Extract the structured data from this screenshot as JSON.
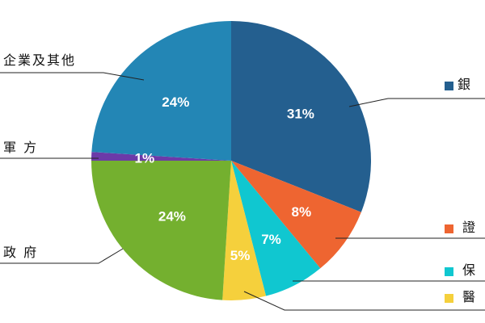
{
  "chart_data": {
    "type": "pie",
    "slices": [
      {
        "label": "銀",
        "value": 31,
        "display": "31%",
        "color": "#245f8f"
      },
      {
        "label": "證",
        "value": 8,
        "display": "8%",
        "color": "#ee6531"
      },
      {
        "label": "保",
        "value": 7,
        "display": "7%",
        "color": "#10c7d0"
      },
      {
        "label": "醫",
        "value": 5,
        "display": "5%",
        "color": "#f5d03c"
      },
      {
        "label": "政 府",
        "value": 24,
        "display": "24%",
        "color": "#74b02f"
      },
      {
        "label": "軍 方",
        "value": 1,
        "display": "1%",
        "color": "#6c3aa8"
      },
      {
        "label": "企業及其他",
        "value": 24,
        "display": "24%",
        "color": "#2386b5"
      }
    ]
  }
}
